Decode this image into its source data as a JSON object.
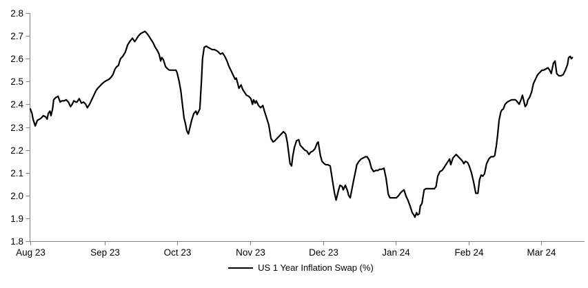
{
  "legend": {
    "label": "US 1 Year Inflation Swap (%)"
  },
  "colors": {
    "series": "#000000",
    "axis": "#808080",
    "label": "#000000",
    "background": "#ffffff"
  },
  "chart_data": {
    "type": "line",
    "title": "",
    "xlabel": "",
    "ylabel": "",
    "ylim": [
      1.8,
      2.8
    ],
    "y_tick_step": 0.1,
    "grid": false,
    "legend_position": "bottom-center",
    "y_ticks": [
      {
        "label": "2.8",
        "value": 2.8
      },
      {
        "label": "2.7",
        "value": 2.7
      },
      {
        "label": "2.6",
        "value": 2.6
      },
      {
        "label": "2.5",
        "value": 2.5
      },
      {
        "label": "2.4",
        "value": 2.4
      },
      {
        "label": "2.3",
        "value": 2.3
      },
      {
        "label": "2.2",
        "value": 2.2
      },
      {
        "label": "2.1",
        "value": 2.1
      },
      {
        "label": "2.0",
        "value": 2.0
      },
      {
        "label": "1.9",
        "value": 1.9
      },
      {
        "label": "1.8",
        "value": 1.8
      }
    ],
    "x_ticks": [
      {
        "label": "Aug 23",
        "pos": 0.0
      },
      {
        "label": "Sep 23",
        "pos": 0.137
      },
      {
        "label": "Oct 23",
        "pos": 0.27
      },
      {
        "label": "Nov 23",
        "pos": 0.405
      },
      {
        "label": "Dec 23",
        "pos": 0.539
      },
      {
        "label": "Jan 24",
        "pos": 0.673
      },
      {
        "label": "Feb 24",
        "pos": 0.807
      },
      {
        "label": "Mar 24",
        "pos": 0.94
      }
    ],
    "series": [
      {
        "name": "US 1 Year Inflation Swap (%)",
        "color": "#000000",
        "points": [
          [
            0.0,
            2.38
          ],
          [
            0.003,
            2.36
          ],
          [
            0.005,
            2.335
          ],
          [
            0.009,
            2.305
          ],
          [
            0.013,
            2.33
          ],
          [
            0.017,
            2.335
          ],
          [
            0.02,
            2.34
          ],
          [
            0.024,
            2.35
          ],
          [
            0.028,
            2.345
          ],
          [
            0.031,
            2.335
          ],
          [
            0.033,
            2.36
          ],
          [
            0.036,
            2.37
          ],
          [
            0.038,
            2.35
          ],
          [
            0.041,
            2.38
          ],
          [
            0.043,
            2.42
          ],
          [
            0.047,
            2.43
          ],
          [
            0.051,
            2.435
          ],
          [
            0.055,
            2.41
          ],
          [
            0.058,
            2.415
          ],
          [
            0.062,
            2.415
          ],
          [
            0.066,
            2.42
          ],
          [
            0.07,
            2.41
          ],
          [
            0.074,
            2.39
          ],
          [
            0.077,
            2.4
          ],
          [
            0.08,
            2.415
          ],
          [
            0.084,
            2.41
          ],
          [
            0.086,
            2.41
          ],
          [
            0.09,
            2.425
          ],
          [
            0.094,
            2.405
          ],
          [
            0.098,
            2.41
          ],
          [
            0.102,
            2.4
          ],
          [
            0.105,
            2.385
          ],
          [
            0.109,
            2.4
          ],
          [
            0.113,
            2.42
          ],
          [
            0.117,
            2.44
          ],
          [
            0.121,
            2.46
          ],
          [
            0.124,
            2.47
          ],
          [
            0.128,
            2.48
          ],
          [
            0.132,
            2.49
          ],
          [
            0.137,
            2.5
          ],
          [
            0.141,
            2.505
          ],
          [
            0.145,
            2.51
          ],
          [
            0.149,
            2.52
          ],
          [
            0.152,
            2.53
          ],
          [
            0.156,
            2.555
          ],
          [
            0.159,
            2.565
          ],
          [
            0.162,
            2.57
          ],
          [
            0.166,
            2.6
          ],
          [
            0.17,
            2.61
          ],
          [
            0.175,
            2.63
          ],
          [
            0.179,
            2.66
          ],
          [
            0.183,
            2.675
          ],
          [
            0.188,
            2.69
          ],
          [
            0.192,
            2.675
          ],
          [
            0.195,
            2.685
          ],
          [
            0.199,
            2.7
          ],
          [
            0.203,
            2.71
          ],
          [
            0.207,
            2.715
          ],
          [
            0.211,
            2.72
          ],
          [
            0.215,
            2.71
          ],
          [
            0.218,
            2.7
          ],
          [
            0.222,
            2.685
          ],
          [
            0.226,
            2.67
          ],
          [
            0.23,
            2.65
          ],
          [
            0.234,
            2.635
          ],
          [
            0.237,
            2.62
          ],
          [
            0.24,
            2.59
          ],
          [
            0.242,
            2.605
          ],
          [
            0.245,
            2.595
          ],
          [
            0.249,
            2.565
          ],
          [
            0.253,
            2.555
          ],
          [
            0.256,
            2.55
          ],
          [
            0.26,
            2.55
          ],
          [
            0.264,
            2.55
          ],
          [
            0.268,
            2.55
          ],
          [
            0.27,
            2.54
          ],
          [
            0.274,
            2.5
          ],
          [
            0.277,
            2.46
          ],
          [
            0.28,
            2.4
          ],
          [
            0.283,
            2.34
          ],
          [
            0.286,
            2.31
          ],
          [
            0.288,
            2.285
          ],
          [
            0.291,
            2.27
          ],
          [
            0.293,
            2.29
          ],
          [
            0.297,
            2.33
          ],
          [
            0.301,
            2.36
          ],
          [
            0.305,
            2.37
          ],
          [
            0.307,
            2.355
          ],
          [
            0.31,
            2.37
          ],
          [
            0.312,
            2.38
          ],
          [
            0.315,
            2.5
          ],
          [
            0.317,
            2.6
          ],
          [
            0.32,
            2.65
          ],
          [
            0.324,
            2.655
          ],
          [
            0.327,
            2.65
          ],
          [
            0.331,
            2.645
          ],
          [
            0.335,
            2.64
          ],
          [
            0.339,
            2.64
          ],
          [
            0.343,
            2.635
          ],
          [
            0.346,
            2.63
          ],
          [
            0.35,
            2.62
          ],
          [
            0.354,
            2.625
          ],
          [
            0.358,
            2.61
          ],
          [
            0.362,
            2.59
          ],
          [
            0.365,
            2.57
          ],
          [
            0.369,
            2.55
          ],
          [
            0.373,
            2.53
          ],
          [
            0.377,
            2.51
          ],
          [
            0.379,
            2.515
          ],
          [
            0.382,
            2.49
          ],
          [
            0.384,
            2.47
          ],
          [
            0.388,
            2.485
          ],
          [
            0.391,
            2.465
          ],
          [
            0.395,
            2.45
          ],
          [
            0.398,
            2.44
          ],
          [
            0.402,
            2.435
          ],
          [
            0.406,
            2.425
          ],
          [
            0.409,
            2.4
          ],
          [
            0.411,
            2.42
          ],
          [
            0.414,
            2.405
          ],
          [
            0.416,
            2.415
          ],
          [
            0.42,
            2.395
          ],
          [
            0.424,
            2.385
          ],
          [
            0.428,
            2.395
          ],
          [
            0.431,
            2.37
          ],
          [
            0.435,
            2.34
          ],
          [
            0.439,
            2.31
          ],
          [
            0.443,
            2.25
          ],
          [
            0.447,
            2.235
          ],
          [
            0.45,
            2.24
          ],
          [
            0.454,
            2.25
          ],
          [
            0.458,
            2.26
          ],
          [
            0.462,
            2.27
          ],
          [
            0.466,
            2.28
          ],
          [
            0.47,
            2.27
          ],
          [
            0.473,
            2.235
          ],
          [
            0.476,
            2.18
          ],
          [
            0.478,
            2.14
          ],
          [
            0.481,
            2.13
          ],
          [
            0.483,
            2.17
          ],
          [
            0.486,
            2.21
          ],
          [
            0.49,
            2.24
          ],
          [
            0.494,
            2.245
          ],
          [
            0.497,
            2.22
          ],
          [
            0.501,
            2.21
          ],
          [
            0.505,
            2.2
          ],
          [
            0.509,
            2.195
          ],
          [
            0.513,
            2.18
          ],
          [
            0.516,
            2.19
          ],
          [
            0.52,
            2.195
          ],
          [
            0.524,
            2.205
          ],
          [
            0.528,
            2.23
          ],
          [
            0.53,
            2.235
          ],
          [
            0.534,
            2.175
          ],
          [
            0.537,
            2.15
          ],
          [
            0.541,
            2.14
          ],
          [
            0.544,
            2.135
          ],
          [
            0.548,
            2.135
          ],
          [
            0.552,
            2.13
          ],
          [
            0.556,
            2.07
          ],
          [
            0.56,
            2.01
          ],
          [
            0.563,
            1.98
          ],
          [
            0.567,
            2.02
          ],
          [
            0.57,
            2.045
          ],
          [
            0.574,
            2.04
          ],
          [
            0.576,
            2.025
          ],
          [
            0.58,
            2.045
          ],
          [
            0.584,
            2.02
          ],
          [
            0.586,
            2.0
          ],
          [
            0.589,
            1.99
          ],
          [
            0.593,
            2.04
          ],
          [
            0.595,
            2.065
          ],
          [
            0.599,
            2.11
          ],
          [
            0.601,
            2.135
          ],
          [
            0.605,
            2.15
          ],
          [
            0.609,
            2.16
          ],
          [
            0.613,
            2.165
          ],
          [
            0.617,
            2.17
          ],
          [
            0.62,
            2.17
          ],
          [
            0.624,
            2.155
          ],
          [
            0.628,
            2.12
          ],
          [
            0.632,
            2.105
          ],
          [
            0.636,
            2.11
          ],
          [
            0.64,
            2.11
          ],
          [
            0.643,
            2.115
          ],
          [
            0.647,
            2.115
          ],
          [
            0.651,
            2.12
          ],
          [
            0.655,
            2.075
          ],
          [
            0.659,
            2.005
          ],
          [
            0.662,
            1.99
          ],
          [
            0.666,
            1.99
          ],
          [
            0.67,
            1.99
          ],
          [
            0.674,
            1.99
          ],
          [
            0.678,
            2.0
          ],
          [
            0.681,
            2.01
          ],
          [
            0.685,
            2.02
          ],
          [
            0.688,
            2.025
          ],
          [
            0.692,
            1.995
          ],
          [
            0.695,
            1.98
          ],
          [
            0.699,
            1.955
          ],
          [
            0.703,
            1.925
          ],
          [
            0.706,
            1.915
          ],
          [
            0.708,
            1.905
          ],
          [
            0.711,
            1.925
          ],
          [
            0.713,
            1.915
          ],
          [
            0.716,
            1.92
          ],
          [
            0.718,
            1.955
          ],
          [
            0.721,
            1.965
          ],
          [
            0.725,
            2.025
          ],
          [
            0.728,
            2.03
          ],
          [
            0.732,
            2.03
          ],
          [
            0.736,
            2.03
          ],
          [
            0.74,
            2.03
          ],
          [
            0.744,
            2.03
          ],
          [
            0.747,
            2.04
          ],
          [
            0.75,
            2.085
          ],
          [
            0.754,
            2.105
          ],
          [
            0.758,
            2.11
          ],
          [
            0.761,
            2.12
          ],
          [
            0.765,
            2.135
          ],
          [
            0.769,
            2.15
          ],
          [
            0.772,
            2.16
          ],
          [
            0.774,
            2.135
          ],
          [
            0.778,
            2.165
          ],
          [
            0.782,
            2.175
          ],
          [
            0.784,
            2.18
          ],
          [
            0.788,
            2.17
          ],
          [
            0.792,
            2.16
          ],
          [
            0.796,
            2.15
          ],
          [
            0.798,
            2.14
          ],
          [
            0.801,
            2.15
          ],
          [
            0.805,
            2.145
          ],
          [
            0.808,
            2.13
          ],
          [
            0.812,
            2.1
          ],
          [
            0.816,
            2.06
          ],
          [
            0.82,
            2.01
          ],
          [
            0.824,
            2.01
          ],
          [
            0.827,
            2.07
          ],
          [
            0.83,
            2.09
          ],
          [
            0.833,
            2.085
          ],
          [
            0.836,
            2.095
          ],
          [
            0.84,
            2.14
          ],
          [
            0.844,
            2.16
          ],
          [
            0.848,
            2.17
          ],
          [
            0.852,
            2.17
          ],
          [
            0.855,
            2.175
          ],
          [
            0.858,
            2.22
          ],
          [
            0.86,
            2.26
          ],
          [
            0.863,
            2.33
          ],
          [
            0.866,
            2.365
          ],
          [
            0.868,
            2.375
          ],
          [
            0.871,
            2.38
          ],
          [
            0.874,
            2.4
          ],
          [
            0.878,
            2.41
          ],
          [
            0.882,
            2.415
          ],
          [
            0.886,
            2.42
          ],
          [
            0.89,
            2.42
          ],
          [
            0.893,
            2.42
          ],
          [
            0.897,
            2.41
          ],
          [
            0.9,
            2.4
          ],
          [
            0.904,
            2.425
          ],
          [
            0.906,
            2.44
          ],
          [
            0.909,
            2.41
          ],
          [
            0.911,
            2.39
          ],
          [
            0.914,
            2.4
          ],
          [
            0.916,
            2.42
          ],
          [
            0.919,
            2.43
          ],
          [
            0.923,
            2.455
          ],
          [
            0.926,
            2.49
          ],
          [
            0.93,
            2.51
          ],
          [
            0.934,
            2.53
          ],
          [
            0.938,
            2.54
          ],
          [
            0.942,
            2.55
          ],
          [
            0.945,
            2.55
          ],
          [
            0.949,
            2.555
          ],
          [
            0.953,
            2.56
          ],
          [
            0.956,
            2.55
          ],
          [
            0.959,
            2.535
          ],
          [
            0.963,
            2.58
          ],
          [
            0.966,
            2.59
          ],
          [
            0.969,
            2.535
          ],
          [
            0.973,
            2.525
          ],
          [
            0.977,
            2.525
          ],
          [
            0.981,
            2.53
          ],
          [
            0.985,
            2.55
          ],
          [
            0.989,
            2.575
          ],
          [
            0.991,
            2.605
          ],
          [
            0.994,
            2.61
          ],
          [
            0.996,
            2.6
          ],
          [
            0.998,
            2.605
          ]
        ]
      }
    ]
  }
}
